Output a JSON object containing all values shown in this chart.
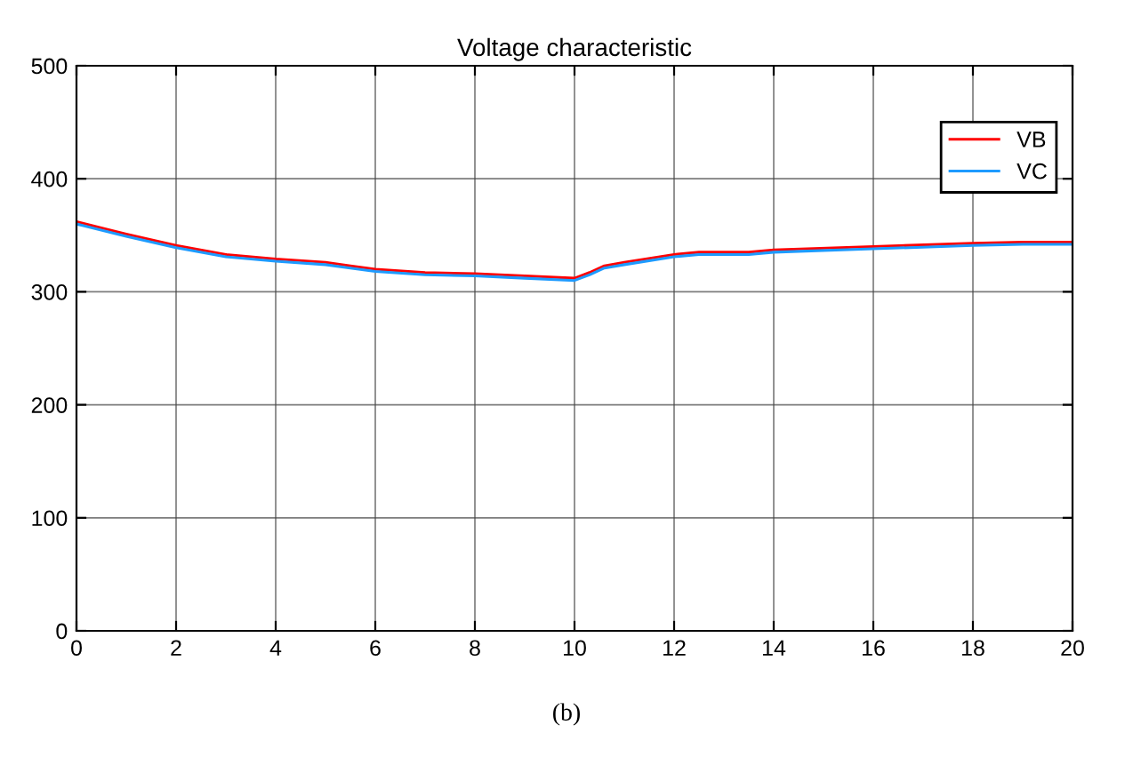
{
  "chart_data": {
    "type": "line",
    "title": "Voltage characteristic",
    "x": [
      0,
      1,
      2,
      3,
      4,
      5,
      5.5,
      6,
      7,
      8,
      9,
      10,
      10.3,
      10.6,
      11,
      12,
      12.5,
      13,
      13.5,
      14,
      16,
      18,
      19,
      20
    ],
    "series": [
      {
        "name": "VB",
        "color": "#ff0000",
        "values": [
          362,
          351,
          341,
          333,
          329,
          326,
          323,
          320,
          317,
          316,
          314,
          312,
          317,
          323,
          326,
          333,
          335,
          335,
          335,
          337,
          340,
          343,
          344,
          344
        ]
      },
      {
        "name": "VC",
        "color": "#1e9bff",
        "values": [
          360,
          349,
          339,
          331,
          327,
          324,
          321,
          318,
          315,
          314,
          312,
          310,
          315,
          321,
          324,
          331,
          333,
          333,
          333,
          335,
          338,
          341,
          342,
          342
        ]
      }
    ],
    "xlim": [
      0,
      20
    ],
    "xticks": [
      0,
      2,
      4,
      6,
      8,
      10,
      12,
      14,
      16,
      18,
      20
    ],
    "ylim": [
      0,
      500
    ],
    "yticks": [
      0,
      100,
      200,
      300,
      400,
      500
    ],
    "grid": true,
    "legend": "top right",
    "annotations": [
      "(b)"
    ]
  }
}
